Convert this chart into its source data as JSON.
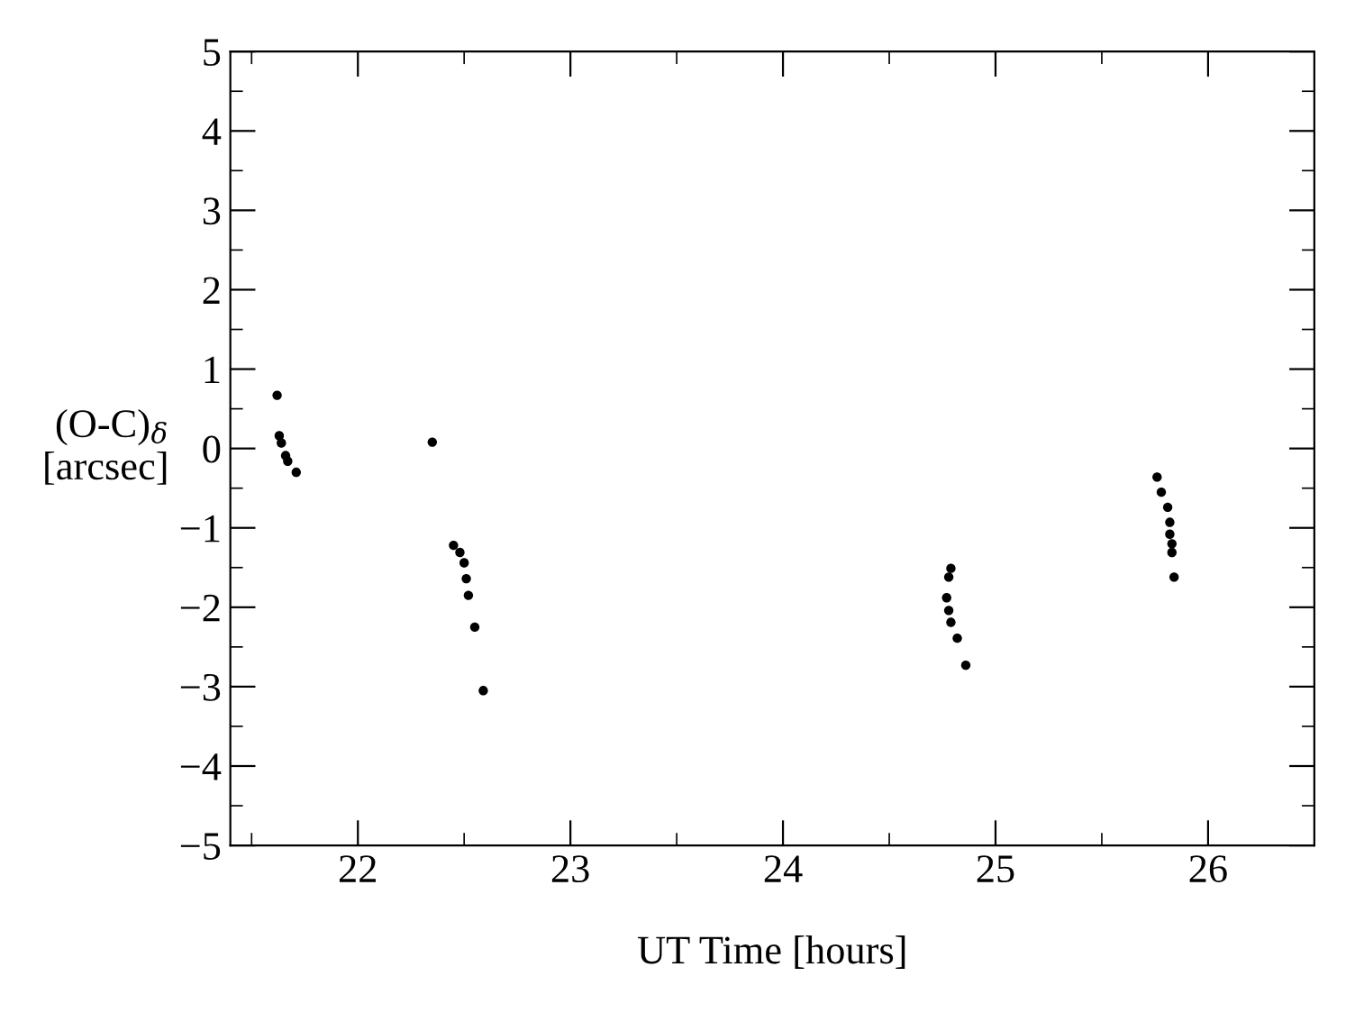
{
  "chart_data": {
    "type": "scatter",
    "xlabel": "UT Time [hours]",
    "ylabel": "(O-C)$_{δ}$\n[arcsec]",
    "xlim": [
      21.4,
      26.5
    ],
    "ylim": [
      -5,
      5
    ],
    "xticks": [
      22,
      23,
      24,
      25,
      26
    ],
    "yticks": [
      5,
      4,
      3,
      2,
      1,
      0,
      -1,
      -2,
      -3,
      -4,
      -5
    ],
    "marker": "circle",
    "grid": false,
    "series": [
      {
        "color": "#000000",
        "x": [
          21.62,
          21.63,
          21.64,
          21.66,
          21.67,
          21.71,
          22.35,
          22.45,
          22.48,
          22.5,
          22.51,
          22.52,
          22.55,
          22.59,
          24.79,
          24.78,
          24.77,
          24.78,
          24.79,
          24.82,
          24.86,
          25.76,
          25.78,
          25.81,
          25.82,
          25.82,
          25.83,
          25.83,
          25.84
        ],
        "values": [
          0.67,
          0.16,
          0.07,
          -0.09,
          -0.16,
          -0.3,
          0.08,
          -1.22,
          -1.31,
          -1.44,
          -1.64,
          -1.85,
          -2.25,
          -3.05,
          -1.51,
          -1.62,
          -1.88,
          -2.04,
          -2.19,
          -2.39,
          -2.73,
          -0.36,
          -0.55,
          -0.74,
          -0.93,
          -1.08,
          -1.2,
          -1.31,
          -1.62
        ]
      }
    ]
  }
}
